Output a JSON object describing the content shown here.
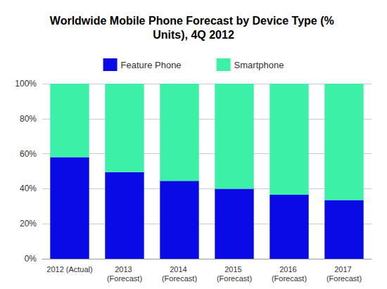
{
  "chart_data": {
    "type": "bar",
    "title": "Worldwide Mobile Phone Forecast by Device Type (% Units), 4Q 2012",
    "categories": [
      "2012 (Actual)",
      "2013 (Forecast)",
      "2014 (Forecast)",
      "2015 (Forecast)",
      "2016 (Forecast)",
      "2017 (Forecast)"
    ],
    "series": [
      {
        "name": "Feature Phone",
        "color": "#0a0ae6",
        "values": [
          58,
          49.5,
          44.5,
          40,
          36.5,
          33.5
        ]
      },
      {
        "name": "Smartphone",
        "color": "#3cf0a8",
        "values": [
          42,
          50.5,
          55.5,
          60,
          63.5,
          66.5
        ]
      }
    ],
    "ylim": [
      0,
      100
    ],
    "yticks": [
      {
        "value": 0,
        "label": "0%"
      },
      {
        "value": 20,
        "label": "20%"
      },
      {
        "value": 40,
        "label": "40%"
      },
      {
        "value": 60,
        "label": "60%"
      },
      {
        "value": 80,
        "label": "80%"
      },
      {
        "value": 100,
        "label": "100%"
      }
    ],
    "stacked": true,
    "grid": true,
    "legend": "top"
  }
}
